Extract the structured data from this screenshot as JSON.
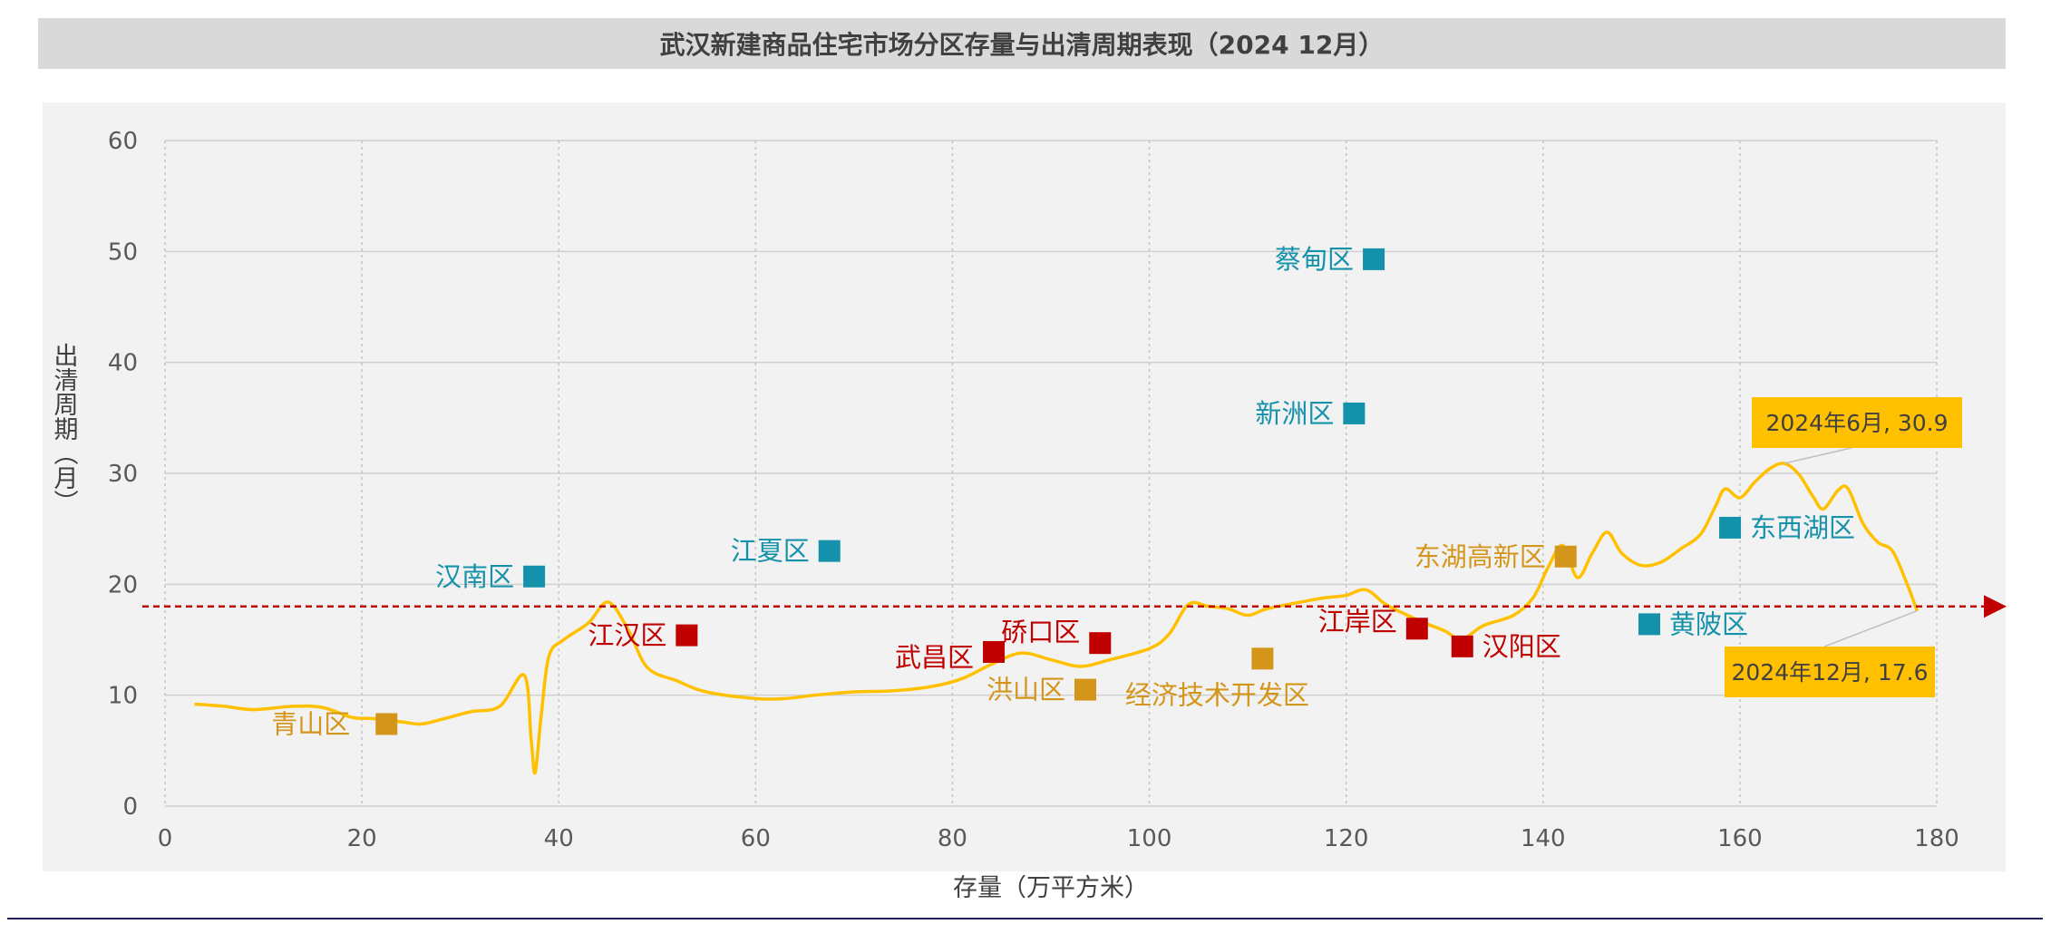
{
  "chart_data": {
    "type": "scatter",
    "title": "武汉新建商品住宅市场分区存量与出清周期表现（2024 12月）",
    "xlabel": "存量（万平方米）",
    "ylabel": "出清周期（月）",
    "xlim": [
      0,
      180
    ],
    "ylim": [
      0,
      60
    ],
    "xticks": [
      0,
      20,
      40,
      60,
      80,
      100,
      120,
      140,
      160,
      180
    ],
    "yticks": [
      0,
      10,
      20,
      30,
      40,
      50,
      60
    ],
    "grid": true,
    "reference_line": {
      "y": 18,
      "color": "#c00000"
    },
    "colors": {
      "teal": "#1592ab",
      "red": "#c00000",
      "gold": "#d4961a",
      "curve": "#ffc000",
      "callout": "#ffc000",
      "plot_bg": "#f2f2f2"
    },
    "points": [
      {
        "name": "汉南区",
        "x": 37.5,
        "y": 20.7,
        "group": "teal"
      },
      {
        "name": "江夏区",
        "x": 67.5,
        "y": 23.0,
        "group": "teal"
      },
      {
        "name": "蔡甸区",
        "x": 122.8,
        "y": 49.3,
        "group": "teal"
      },
      {
        "name": "新洲区",
        "x": 120.8,
        "y": 35.4,
        "group": "teal"
      },
      {
        "name": "东西湖区",
        "x": 159.0,
        "y": 25.1,
        "group": "teal"
      },
      {
        "name": "黄陂区",
        "x": 150.8,
        "y": 16.4,
        "group": "teal"
      },
      {
        "name": "江汉区",
        "x": 53.0,
        "y": 15.4,
        "group": "red"
      },
      {
        "name": "武昌区",
        "x": 84.2,
        "y": 13.9,
        "group": "red"
      },
      {
        "name": "硚口区",
        "x": 95.0,
        "y": 14.7,
        "group": "red"
      },
      {
        "name": "江岸区",
        "x": 127.2,
        "y": 16.0,
        "group": "red"
      },
      {
        "name": "汉阳区",
        "x": 131.8,
        "y": 14.4,
        "group": "red"
      },
      {
        "name": "青山区",
        "x": 22.5,
        "y": 7.4,
        "group": "gold"
      },
      {
        "name": "洪山区",
        "x": 93.5,
        "y": 10.5,
        "group": "gold"
      },
      {
        "name": "经济技术开发区",
        "x": 111.5,
        "y": 13.3,
        "group": "gold"
      },
      {
        "name": "东湖高新区",
        "x": 142.3,
        "y": 22.5,
        "group": "gold"
      }
    ],
    "trend_series": [
      [
        3,
        9.2
      ],
      [
        6,
        9.0
      ],
      [
        9,
        8.7
      ],
      [
        13,
        9.0
      ],
      [
        16,
        8.9
      ],
      [
        19,
        8.0
      ],
      [
        21,
        7.9
      ],
      [
        24,
        7.6
      ],
      [
        26,
        7.4
      ],
      [
        28,
        7.8
      ],
      [
        31,
        8.5
      ],
      [
        34,
        9.0
      ],
      [
        36.5,
        11.8
      ],
      [
        37.2,
        6.0
      ],
      [
        37.6,
        3.0
      ],
      [
        38.2,
        8.0
      ],
      [
        39,
        13.5
      ],
      [
        40.5,
        15.0
      ],
      [
        43,
        16.5
      ],
      [
        45,
        18.4
      ],
      [
        47,
        16.0
      ],
      [
        49,
        12.5
      ],
      [
        52,
        11.3
      ],
      [
        55,
        10.3
      ],
      [
        60,
        9.7
      ],
      [
        63,
        9.7
      ],
      [
        66,
        10.0
      ],
      [
        70,
        10.3
      ],
      [
        74,
        10.4
      ],
      [
        78,
        10.8
      ],
      [
        81,
        11.5
      ],
      [
        84,
        12.8
      ],
      [
        87,
        13.8
      ],
      [
        90,
        13.2
      ],
      [
        93,
        12.6
      ],
      [
        96,
        13.2
      ],
      [
        100,
        14.2
      ],
      [
        102,
        15.5
      ],
      [
        104,
        18.2
      ],
      [
        106,
        18.0
      ],
      [
        108,
        17.8
      ],
      [
        110,
        17.2
      ],
      [
        112,
        17.8
      ],
      [
        116,
        18.5
      ],
      [
        118,
        18.8
      ],
      [
        120,
        19.0
      ],
      [
        122,
        19.5
      ],
      [
        124,
        18.2
      ],
      [
        126,
        17.3
      ],
      [
        128,
        16.5
      ],
      [
        130,
        15.8
      ],
      [
        131.5,
        15.0
      ],
      [
        132.5,
        15.4
      ],
      [
        134,
        16.3
      ],
      [
        137,
        17.2
      ],
      [
        139,
        18.8
      ],
      [
        140.5,
        21.5
      ],
      [
        142,
        23.5
      ],
      [
        143.5,
        20.6
      ],
      [
        145,
        22.8
      ],
      [
        146.5,
        24.7
      ],
      [
        148,
        22.8
      ],
      [
        150,
        21.7
      ],
      [
        152,
        22.0
      ],
      [
        154,
        23.2
      ],
      [
        156,
        24.5
      ],
      [
        157.5,
        27.0
      ],
      [
        158.5,
        28.6
      ],
      [
        160,
        27.8
      ],
      [
        161.5,
        29.2
      ],
      [
        163,
        30.4
      ],
      [
        164.5,
        30.9
      ],
      [
        166,
        29.9
      ],
      [
        167.5,
        27.8
      ],
      [
        168.5,
        26.8
      ],
      [
        170,
        28.5
      ],
      [
        171,
        28.6
      ],
      [
        172.5,
        25.5
      ],
      [
        174,
        23.8
      ],
      [
        175.5,
        23.0
      ],
      [
        177,
        20.0
      ],
      [
        178,
        17.6
      ]
    ],
    "annotations": [
      {
        "text": "2024年6月, 30.9",
        "x": 164.5,
        "y": 30.9
      },
      {
        "text": "2024年12月, 17.6",
        "x": 178,
        "y": 17.6
      }
    ]
  }
}
